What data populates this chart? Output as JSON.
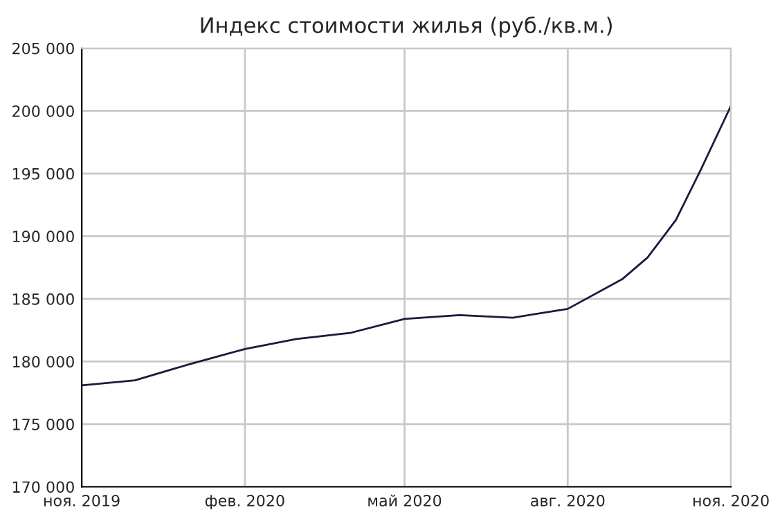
{
  "chart_data": {
    "type": "line",
    "title": "Индекс стоимости жилья (руб./кв.м.)",
    "x": [
      "2019-11",
      "2019-12",
      "2020-01",
      "2020-02",
      "2020-03",
      "2020-04",
      "2020-05",
      "2020-06",
      "2020-07",
      "2020-08",
      "2020-09",
      "2020-09-15",
      "2020-10",
      "2020-10-15",
      "2020-11"
    ],
    "series": [
      {
        "color": "#1a1a40",
        "values": [
          178100,
          178500,
          179800,
          181000,
          181800,
          182300,
          183400,
          183700,
          183500,
          184200,
          186600,
          188300,
          191300,
          195300,
          200400
        ]
      }
    ],
    "xlim": [
      "2019-11",
      "2020-11"
    ],
    "xticks": [
      {
        "value": "2019-11",
        "label": "ноя. 2019"
      },
      {
        "value": "2020-02",
        "label": "фев. 2020"
      },
      {
        "value": "2020-05",
        "label": "май 2020"
      },
      {
        "value": "2020-08",
        "label": "авг. 2020"
      },
      {
        "value": "2020-11",
        "label": "ноя. 2020"
      }
    ],
    "ylim": [
      170000,
      205000
    ],
    "yticks": [
      {
        "value": 170000,
        "label": "170 000"
      },
      {
        "value": 175000,
        "label": "175 000"
      },
      {
        "value": 180000,
        "label": "180 000"
      },
      {
        "value": 185000,
        "label": "185 000"
      },
      {
        "value": 190000,
        "label": "190 000"
      },
      {
        "value": 195000,
        "label": "195 000"
      },
      {
        "value": 200000,
        "label": "200 000"
      },
      {
        "value": 205000,
        "label": "205 000"
      }
    ],
    "grid": true,
    "marker": "none",
    "line_style": "solid"
  }
}
